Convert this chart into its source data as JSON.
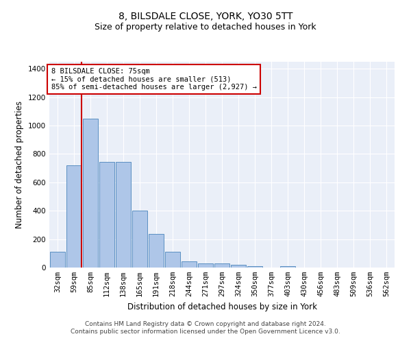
{
  "title": "8, BILSDALE CLOSE, YORK, YO30 5TT",
  "subtitle": "Size of property relative to detached houses in York",
  "xlabel": "Distribution of detached houses by size in York",
  "ylabel": "Number of detached properties",
  "categories": [
    "32sqm",
    "59sqm",
    "85sqm",
    "112sqm",
    "138sqm",
    "165sqm",
    "191sqm",
    "218sqm",
    "244sqm",
    "271sqm",
    "297sqm",
    "324sqm",
    "350sqm",
    "377sqm",
    "403sqm",
    "430sqm",
    "456sqm",
    "483sqm",
    "509sqm",
    "536sqm",
    "562sqm"
  ],
  "values": [
    110,
    720,
    1050,
    745,
    745,
    400,
    235,
    110,
    45,
    28,
    28,
    18,
    10,
    0,
    10,
    0,
    0,
    0,
    0,
    0,
    0
  ],
  "bar_color": "#aec6e8",
  "bar_edge_color": "#5a8fc2",
  "vline_color": "#cc0000",
  "annotation_text": "8 BILSDALE CLOSE: 75sqm\n← 15% of detached houses are smaller (513)\n85% of semi-detached houses are larger (2,927) →",
  "annotation_box_color": "#ffffff",
  "annotation_box_edge_color": "#cc0000",
  "ylim": [
    0,
    1450
  ],
  "yticks": [
    0,
    200,
    400,
    600,
    800,
    1000,
    1200,
    1400
  ],
  "background_color": "#eaeff8",
  "grid_color": "#ffffff",
  "footer_line1": "Contains HM Land Registry data © Crown copyright and database right 2024.",
  "footer_line2": "Contains public sector information licensed under the Open Government Licence v3.0.",
  "title_fontsize": 10,
  "subtitle_fontsize": 9,
  "axis_label_fontsize": 8.5,
  "tick_fontsize": 7.5,
  "annotation_fontsize": 7.5,
  "footer_fontsize": 6.5
}
